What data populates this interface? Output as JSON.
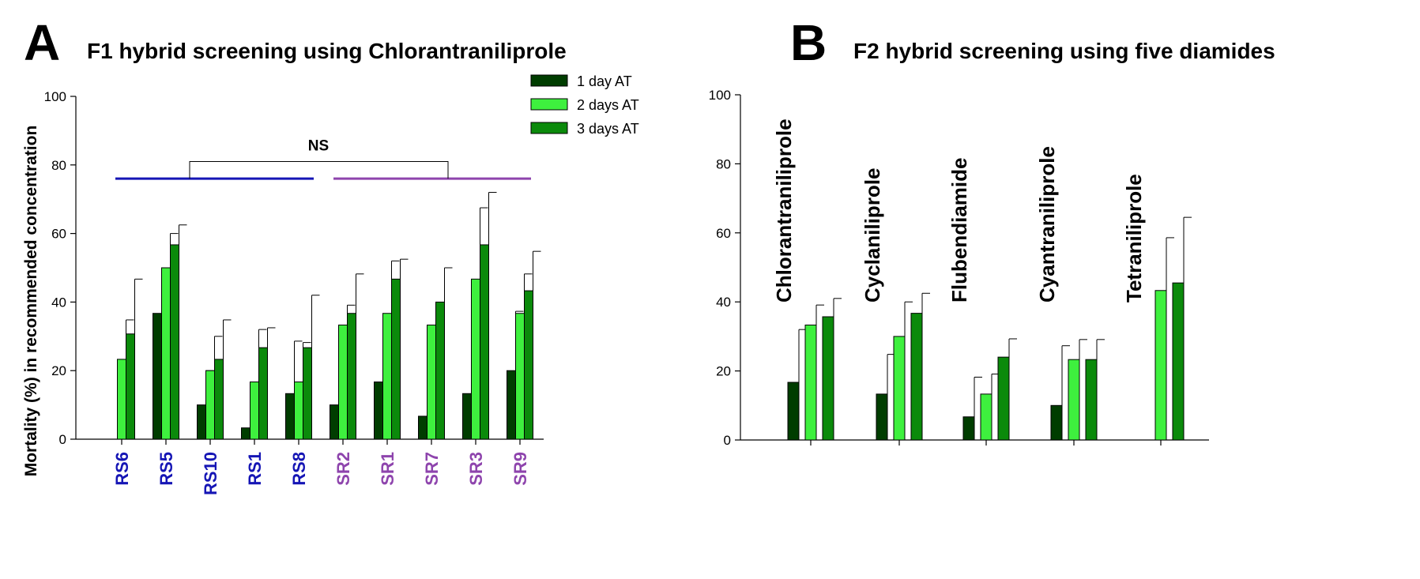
{
  "panels": [
    {
      "letter": "A",
      "title": "F1 hybrid screening using Chlorantraniliprole"
    },
    {
      "letter": "B",
      "title": "F2 hybrid screening using five diamides"
    }
  ],
  "colors": {
    "day1": "#003d00",
    "day2": "#3ef03e",
    "day3": "#0b8a0b",
    "rs_group": "#1515b5",
    "sr_group": "#8e44ad",
    "axis": "#000000"
  },
  "chart_data": [
    {
      "type": "bar",
      "panel": "A",
      "title": "F1 hybrid screening using Chlorantraniliprole",
      "xlabel": "",
      "ylabel": "Mortality (%) in recommended concentration",
      "ylim": [
        0,
        100
      ],
      "yticks": [
        0,
        20,
        40,
        60,
        80,
        100
      ],
      "grid": false,
      "legend_position": "top-right",
      "categories": [
        "RS6",
        "RS5",
        "RS10",
        "RS1",
        "RS8",
        "SR2",
        "SR1",
        "SR7",
        "SR3",
        "SR9"
      ],
      "category_groups": [
        "rs",
        "rs",
        "rs",
        "rs",
        "rs",
        "sr",
        "sr",
        "sr",
        "sr",
        "sr"
      ],
      "series": [
        {
          "name": "1 day AT",
          "color": "#003d00",
          "values": [
            0,
            36.7,
            10.0,
            3.3,
            13.3,
            10.0,
            16.7,
            6.7,
            13.3,
            20.0
          ],
          "errors": [
            0,
            5.8,
            10.0,
            5.8,
            15.3,
            17.3,
            5.8,
            11.5,
            5.8,
            17.3
          ]
        },
        {
          "name": "2 days AT",
          "color": "#3ef03e",
          "values": [
            23.3,
            50.0,
            20.0,
            16.7,
            16.7,
            33.3,
            36.7,
            33.3,
            46.7,
            36.7
          ],
          "errors": [
            11.5,
            10.0,
            10.0,
            15.3,
            11.5,
            5.8,
            15.3,
            5.8,
            20.8,
            11.5
          ]
        },
        {
          "name": "3 days AT",
          "color": "#0b8a0b",
          "values": [
            30.7,
            56.7,
            23.3,
            26.7,
            26.7,
            36.7,
            46.7,
            40.0,
            56.7,
            43.3
          ],
          "errors": [
            16.0,
            5.8,
            11.5,
            5.8,
            15.3,
            11.5,
            5.8,
            10.0,
            15.3,
            11.5
          ]
        }
      ],
      "annotation": {
        "text": "NS",
        "bracket_level": 81,
        "group_line_level": 76
      }
    },
    {
      "type": "bar",
      "panel": "B",
      "title": "F2 hybrid screening using five diamides",
      "xlabel": "",
      "ylabel": "",
      "ylim": [
        0,
        100
      ],
      "yticks": [
        0,
        20,
        40,
        60,
        80,
        100
      ],
      "grid": false,
      "categories": [
        "Chlorantraniliprole",
        "Cyclaniliprole",
        "Flubendiamide",
        "Cyantraniliprole",
        "Tetraniliprole"
      ],
      "series": [
        {
          "name": "1 day AT",
          "color": "#003d00",
          "values": [
            16.7,
            13.3,
            6.7,
            10.0,
            0
          ],
          "errors": [
            15.3,
            11.5,
            11.5,
            17.3,
            0
          ]
        },
        {
          "name": "2 days AT",
          "color": "#3ef03e",
          "values": [
            33.3,
            30.0,
            13.3,
            23.3,
            43.3
          ],
          "errors": [
            5.8,
            10.0,
            5.8,
            5.8,
            15.3
          ]
        },
        {
          "name": "3 days AT",
          "color": "#0b8a0b",
          "values": [
            35.7,
            36.7,
            24.0,
            23.3,
            45.5
          ],
          "errors": [
            5.3,
            5.8,
            5.3,
            5.8,
            19.0
          ]
        }
      ]
    }
  ]
}
